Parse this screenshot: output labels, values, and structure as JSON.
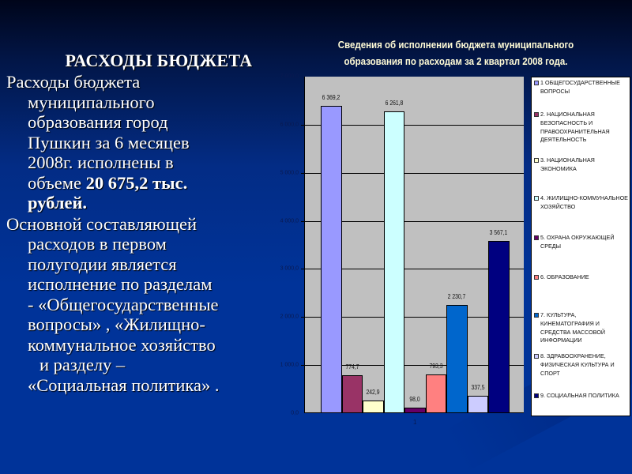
{
  "slide": {
    "heading": "РАСХОДЫ БЮДЖЕТА",
    "paragraph1": {
      "lines": [
        "Расходы бюджета",
        "муниципального",
        "образования город",
        "Пушкин за 6 месяцев",
        "2008г. исполнены в"
      ],
      "line6_prefix": "объеме ",
      "line6_bold": "20 675,2 тыс.",
      "line7_bold": "рублей."
    },
    "paragraph2": {
      "lines": [
        "Основной составляющей",
        "расходов в первом",
        "полугодии является",
        "исполнение по разделам",
        "- «Общегосударственные",
        "вопросы» , «Жилищно-",
        "коммунальное хозяйство",
        "и разделу –",
        "«Социальная политика» ."
      ]
    }
  },
  "chart_data": {
    "type": "bar",
    "title": "Сведения об исполнении бюджета муниципального образования по расходам за 2 квартал 2008 года.",
    "title_lines": [
      "Сведения об исполнении бюджета муниципального",
      "образования по расходам за 2 квартал 2008 года."
    ],
    "xlabel": "",
    "ylabel": "",
    "categories": [
      "1"
    ],
    "ylim": [
      0,
      7000
    ],
    "yticks": [
      "0,0",
      "1 000,0",
      "2 000,0",
      "3 000,0",
      "4 000,0",
      "5 000,0",
      "6 000,0",
      "7 000,0"
    ],
    "grid": true,
    "legend_position": "right",
    "series": [
      {
        "name": "1 ОБЩЕГОСУДАРСТВЕННЫЕ ВОПРОСЫ",
        "values": [
          6369.2
        ],
        "label": "6 369,2",
        "color": "#9999ff"
      },
      {
        "name": "2. НАЦИОНАЛЬНАЯ БЕЗОПАСНОСТЬ И ПРАВООХРАНИТЕЛЬНАЯ ДЕЯТЕЛЬНОСТЬ",
        "values": [
          774.7
        ],
        "label": "774,7",
        "color": "#993366"
      },
      {
        "name": "3. НАЦИОНАЛЬНАЯ ЭКОНОМИКА",
        "values": [
          242.9
        ],
        "label": "242,9",
        "color": "#ffffcc"
      },
      {
        "name": "4. ЖИЛИЩНО-КОММУНАЛЬНОЕ ХОЗЯЙСТВО",
        "values": [
          6261.8
        ],
        "label": "6 261,8",
        "color": "#ccffff"
      },
      {
        "name": "5. ОХРАНА ОКРУЖАЮЩЕЙ СРЕДЫ",
        "values": [
          98.0
        ],
        "label": "98,0",
        "color": "#660066"
      },
      {
        "name": "6. ОБРАЗОВАНИЕ",
        "values": [
          793.3
        ],
        "label": "793,3",
        "color": "#ff8080"
      },
      {
        "name": "7. КУЛЬТУРА, КИНЕМАТОГРАФИЯ И СРЕДСТВА МАССОВОЙ ИНФОРМАЦИИ",
        "values": [
          2230.7
        ],
        "label": "2 230,7",
        "color": "#0066cc"
      },
      {
        "name": "8. ЗДРАВООХРАНЕНИЕ, ФИЗИЧЕСКАЯ КУЛЬТУРА И СПОРТ",
        "values": [
          337.5
        ],
        "label": "337,5",
        "color": "#ccccff"
      },
      {
        "name": "9. СОЦИАЛЬНАЯ ПОЛИТИКА",
        "values": [
          3567.1
        ],
        "label": "3 567,1",
        "color": "#000080"
      }
    ]
  }
}
